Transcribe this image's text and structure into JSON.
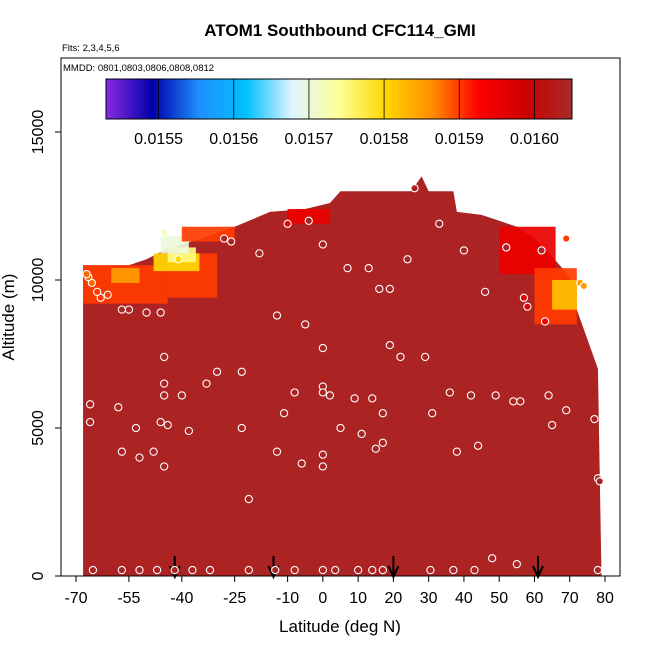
{
  "chart_data": {
    "type": "heatmap",
    "title": "ATOM1 Southbound CFC114_GMI",
    "annotations": [
      "Flts: 2,3,4,5,6",
      "MMDD: 0801,0803,0806,0808,0812"
    ],
    "xlabel": "Latitude (deg N)",
    "ylabel": "Altitude (m)",
    "xlim": [
      -70,
      80
    ],
    "ylim": [
      0,
      17500
    ],
    "x_ticks": [
      -70,
      -55,
      -40,
      -25,
      -10,
      0,
      10,
      20,
      30,
      40,
      50,
      60,
      70,
      80
    ],
    "x_tick_labels": [
      "-70",
      "-55",
      "-40",
      "-25",
      "-10",
      "0",
      "10",
      "20",
      "30",
      "40",
      "50",
      "60",
      "70",
      "80"
    ],
    "y_ticks": [
      0,
      5000,
      10000,
      15000
    ],
    "y_tick_labels": [
      "0",
      "5000",
      "10000",
      "15000"
    ],
    "colorbar": {
      "min": 0.01543,
      "max": 0.01605,
      "ticks": [
        0.0155,
        0.0156,
        0.0157,
        0.0158,
        0.0159,
        0.016
      ],
      "tick_labels": [
        "0.0155",
        "0.0156",
        "0.0157",
        "0.0158",
        "0.0159",
        "0.0160"
      ],
      "colors": [
        "#8a2be2",
        "#0000aa",
        "#1e90ff",
        "#00bfff",
        "#e0f4ff",
        "#ffff99",
        "#ffd700",
        "#ff8c00",
        "#ff0000",
        "#cc0000",
        "#a52a2a"
      ]
    },
    "background_value": 0.01604,
    "field_extent": [
      [
        -68,
        10500
      ],
      [
        -55,
        10500
      ],
      [
        -50,
        10700
      ],
      [
        -45,
        11000
      ],
      [
        -40,
        11200
      ],
      [
        -32,
        11500
      ],
      [
        -25,
        11800
      ],
      [
        -15,
        12300
      ],
      [
        -5,
        12400
      ],
      [
        2,
        12600
      ],
      [
        5,
        13000
      ],
      [
        25,
        13000
      ],
      [
        28,
        13500
      ],
      [
        30,
        13000
      ],
      [
        37,
        13000
      ],
      [
        38,
        12300
      ],
      [
        45,
        12200
      ],
      [
        50,
        12000
      ],
      [
        55,
        11800
      ],
      [
        60,
        11400
      ],
      [
        65,
        10800
      ],
      [
        70,
        10100
      ],
      [
        72,
        9000
      ],
      [
        78,
        7000
      ],
      [
        79,
        0
      ],
      [
        -68,
        0
      ]
    ],
    "low_value_regions": [
      {
        "x": [
          -68,
          -44
        ],
        "y": [
          9200,
          10500
        ],
        "value": 0.0159
      },
      {
        "x": [
          -60,
          -52
        ],
        "y": [
          9900,
          10400
        ],
        "value": 0.01585
      },
      {
        "x": [
          -44,
          -30
        ],
        "y": [
          9400,
          10900
        ],
        "value": 0.0159
      },
      {
        "x": [
          -48,
          -35
        ],
        "y": [
          10300,
          10900
        ],
        "value": 0.0158
      },
      {
        "x": [
          -44,
          -36
        ],
        "y": [
          10600,
          11100
        ],
        "value": 0.01575
      },
      {
        "x": [
          -46,
          -38
        ],
        "y": [
          10900,
          11500
        ],
        "value": 0.0157
      },
      {
        "x": [
          -40,
          -25
        ],
        "y": [
          11300,
          11800
        ],
        "value": 0.0159
      },
      {
        "x": [
          -10,
          2
        ],
        "y": [
          11900,
          12400
        ],
        "value": 0.01595
      },
      {
        "x": [
          50,
          66
        ],
        "y": [
          10200,
          11800
        ],
        "value": 0.01595
      },
      {
        "x": [
          60,
          72
        ],
        "y": [
          8500,
          10400
        ],
        "value": 0.0159
      },
      {
        "x": [
          65,
          72
        ],
        "y": [
          9000,
          10000
        ],
        "value": 0.01582
      }
    ],
    "vertical_profiles_x": [
      -42,
      -14,
      20,
      61
    ],
    "observations": [
      {
        "x": -65.2,
        "y": 200,
        "value": 0.01604
      },
      {
        "x": -57,
        "y": 200,
        "value": 0.01604
      },
      {
        "x": -52,
        "y": 200,
        "value": 0.01604
      },
      {
        "x": -47,
        "y": 200,
        "value": 0.01604
      },
      {
        "x": -42,
        "y": 200,
        "value": 0.01604
      },
      {
        "x": -37,
        "y": 200,
        "value": 0.01604
      },
      {
        "x": -32,
        "y": 200,
        "value": 0.01604
      },
      {
        "x": -21,
        "y": 200,
        "value": 0.01604
      },
      {
        "x": -13.5,
        "y": 200,
        "value": 0.01604
      },
      {
        "x": -8,
        "y": 200,
        "value": 0.01604
      },
      {
        "x": 0,
        "y": 200,
        "value": 0.01604
      },
      {
        "x": 3.5,
        "y": 200,
        "value": 0.01604
      },
      {
        "x": 10,
        "y": 200,
        "value": 0.01604
      },
      {
        "x": 14,
        "y": 200,
        "value": 0.01604
      },
      {
        "x": 17,
        "y": 200,
        "value": 0.01604
      },
      {
        "x": 30.5,
        "y": 200,
        "value": 0.01604
      },
      {
        "x": 37,
        "y": 200,
        "value": 0.01604
      },
      {
        "x": 43,
        "y": 200,
        "value": 0.01604
      },
      {
        "x": 48,
        "y": 600,
        "value": 0.01604
      },
      {
        "x": 55,
        "y": 400,
        "value": 0.01604
      },
      {
        "x": 78,
        "y": 200,
        "value": 0.01604
      },
      {
        "x": 78,
        "y": 3300,
        "value": 0.01604
      },
      {
        "x": 78.5,
        "y": 3200,
        "value": 0.01604
      },
      {
        "x": -21,
        "y": 2600,
        "value": 0.01604
      },
      {
        "x": -57,
        "y": 4200,
        "value": 0.01604
      },
      {
        "x": -52,
        "y": 4000,
        "value": 0.01604
      },
      {
        "x": -48,
        "y": 4200,
        "value": 0.01604
      },
      {
        "x": -45,
        "y": 3700,
        "value": 0.01604
      },
      {
        "x": -13,
        "y": 4200,
        "value": 0.01604
      },
      {
        "x": -6,
        "y": 3800,
        "value": 0.01604
      },
      {
        "x": 0,
        "y": 3700,
        "value": 0.01604
      },
      {
        "x": 0,
        "y": 4100,
        "value": 0.01604
      },
      {
        "x": 15,
        "y": 4300,
        "value": 0.01604
      },
      {
        "x": 17,
        "y": 4500,
        "value": 0.01604
      },
      {
        "x": 38,
        "y": 4200,
        "value": 0.01604
      },
      {
        "x": 44,
        "y": 4400,
        "value": 0.01604
      },
      {
        "x": 17,
        "y": 5500,
        "value": 0.01604
      },
      {
        "x": 11,
        "y": 4800,
        "value": 0.01604
      },
      {
        "x": -53,
        "y": 5000,
        "value": 0.01604
      },
      {
        "x": -44,
        "y": 5100,
        "value": 0.01604
      },
      {
        "x": -38,
        "y": 4900,
        "value": 0.01604
      },
      {
        "x": -23,
        "y": 5000,
        "value": 0.01604
      },
      {
        "x": -11,
        "y": 5500,
        "value": 0.01604
      },
      {
        "x": 5,
        "y": 5000,
        "value": 0.01604
      },
      {
        "x": 31,
        "y": 5500,
        "value": 0.01604
      },
      {
        "x": 65,
        "y": 5100,
        "value": 0.01604
      },
      {
        "x": 69,
        "y": 5600,
        "value": 0.01604
      },
      {
        "x": 77,
        "y": 5300,
        "value": 0.01604
      },
      {
        "x": -66,
        "y": 5200,
        "value": 0.01604
      },
      {
        "x": -66,
        "y": 5800,
        "value": 0.01604
      },
      {
        "x": -58,
        "y": 5700,
        "value": 0.01604
      },
      {
        "x": -46,
        "y": 5200,
        "value": 0.01604
      },
      {
        "x": -45,
        "y": 6100,
        "value": 0.01604
      },
      {
        "x": -40,
        "y": 6100,
        "value": 0.01604
      },
      {
        "x": -33,
        "y": 6500,
        "value": 0.01604
      },
      {
        "x": -8,
        "y": 6200,
        "value": 0.01604
      },
      {
        "x": 0,
        "y": 6400,
        "value": 0.01604
      },
      {
        "x": 0,
        "y": 6200,
        "value": 0.01604
      },
      {
        "x": 2,
        "y": 6100,
        "value": 0.01604
      },
      {
        "x": 9,
        "y": 6000,
        "value": 0.01604
      },
      {
        "x": 14,
        "y": 6000,
        "value": 0.01604
      },
      {
        "x": 36,
        "y": 6200,
        "value": 0.01604
      },
      {
        "x": 42,
        "y": 6100,
        "value": 0.01604
      },
      {
        "x": 49,
        "y": 6100,
        "value": 0.01604
      },
      {
        "x": 54,
        "y": 5900,
        "value": 0.01604
      },
      {
        "x": 56,
        "y": 5900,
        "value": 0.01604
      },
      {
        "x": 64,
        "y": 6100,
        "value": 0.01604
      },
      {
        "x": -45,
        "y": 6500,
        "value": 0.01604
      },
      {
        "x": -30,
        "y": 6900,
        "value": 0.01604
      },
      {
        "x": -23,
        "y": 6900,
        "value": 0.01604
      },
      {
        "x": -45,
        "y": 7400,
        "value": 0.01604
      },
      {
        "x": 0,
        "y": 7700,
        "value": 0.01604
      },
      {
        "x": 19,
        "y": 7800,
        "value": 0.01604
      },
      {
        "x": 22,
        "y": 7400,
        "value": 0.01604
      },
      {
        "x": 29,
        "y": 7400,
        "value": 0.01604
      },
      {
        "x": -5,
        "y": 8500,
        "value": 0.01604
      },
      {
        "x": -13,
        "y": 8800,
        "value": 0.01604
      },
      {
        "x": -46,
        "y": 8900,
        "value": 0.01604
      },
      {
        "x": -50,
        "y": 8900,
        "value": 0.01604
      },
      {
        "x": -55,
        "y": 9000,
        "value": 0.01604
      },
      {
        "x": -57,
        "y": 9000,
        "value": 0.01604
      },
      {
        "x": -61,
        "y": 9500,
        "value": 0.0159
      },
      {
        "x": -63,
        "y": 9400,
        "value": 0.0159
      },
      {
        "x": -64,
        "y": 9600,
        "value": 0.0159
      },
      {
        "x": -65.5,
        "y": 9900,
        "value": 0.01588
      },
      {
        "x": -66.5,
        "y": 10100,
        "value": 0.01588
      },
      {
        "x": -67,
        "y": 10200,
        "value": 0.01588
      },
      {
        "x": 63,
        "y": 8600,
        "value": 0.01595
      },
      {
        "x": 58,
        "y": 9100,
        "value": 0.01595
      },
      {
        "x": 57,
        "y": 9400,
        "value": 0.01595
      },
      {
        "x": 46,
        "y": 9600,
        "value": 0.01604
      },
      {
        "x": 16,
        "y": 9700,
        "value": 0.01604
      },
      {
        "x": 19,
        "y": 9700,
        "value": 0.01604
      },
      {
        "x": 7,
        "y": 10400,
        "value": 0.01604
      },
      {
        "x": 13,
        "y": 10400,
        "value": 0.01604
      },
      {
        "x": 24,
        "y": 10700,
        "value": 0.01604
      },
      {
        "x": 40,
        "y": 11000,
        "value": 0.01604
      },
      {
        "x": 52,
        "y": 11100,
        "value": 0.01604
      },
      {
        "x": 62,
        "y": 11000,
        "value": 0.01604
      },
      {
        "x": 0,
        "y": 11200,
        "value": 0.01604
      },
      {
        "x": -18,
        "y": 10900,
        "value": 0.01604
      },
      {
        "x": -26,
        "y": 11300,
        "value": 0.01604
      },
      {
        "x": -28,
        "y": 11400,
        "value": 0.01604
      },
      {
        "x": -41,
        "y": 10700,
        "value": 0.0158
      },
      {
        "x": -45,
        "y": 11600,
        "value": 0.01572
      },
      {
        "x": -10,
        "y": 11900,
        "value": 0.01595
      },
      {
        "x": -4,
        "y": 12000,
        "value": 0.01604
      },
      {
        "x": 33,
        "y": 11900,
        "value": 0.01604
      },
      {
        "x": 26,
        "y": 13100,
        "value": 0.01604
      },
      {
        "x": 73,
        "y": 9900,
        "value": 0.01585
      },
      {
        "x": 74,
        "y": 9800,
        "value": 0.01585
      },
      {
        "x": 69,
        "y": 11400,
        "value": 0.0159
      }
    ]
  }
}
